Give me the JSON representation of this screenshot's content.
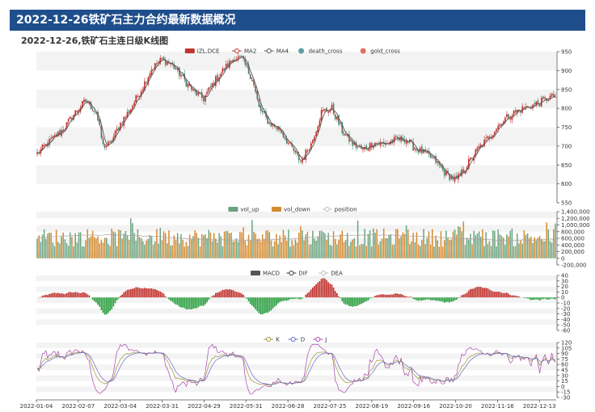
{
  "header": {
    "title": "2022-12-26铁矿石主力合约最新数据概况"
  },
  "chart_data": {
    "type": "candlestick",
    "title": "2022-12-26,铁矿石主连日级K线图",
    "x_ticks": [
      "2022-01-04",
      "2022-02-07",
      "2022-03-04",
      "2022-03-31",
      "2022-04-29",
      "2022-05-31",
      "2022-06-28",
      "2022-07-25",
      "2022-08-19",
      "2022-09-16",
      "2022-10-20",
      "2022-11-16",
      "2022-12-13"
    ],
    "colors": {
      "up": "#c23531",
      "down": "#3e8b75",
      "vol_up": "#6aa37f",
      "vol_down": "#d48a2e",
      "ma2": "#c23531",
      "ma4": "#555555",
      "death_cross": "#5f9ea0",
      "gold_cross": "#e07060",
      "dif": "#333333",
      "dea": "#bbbbbb",
      "k": "#999933",
      "d": "#6666cc",
      "j": "#aa44aa"
    },
    "panels": {
      "kline": {
        "legend": [
          "IZL.DCE",
          "MA2",
          "MA4",
          "death_cross",
          "gold_cross"
        ],
        "ylim": [
          550,
          950
        ],
        "yticks": [
          550,
          600,
          650,
          700,
          750,
          800,
          850,
          900,
          950
        ],
        "anchors": [
          [
            0,
            680
          ],
          [
            8,
            715
          ],
          [
            16,
            750
          ],
          [
            22,
            790
          ],
          [
            28,
            820
          ],
          [
            34,
            790
          ],
          [
            38,
            700
          ],
          [
            42,
            705
          ],
          [
            48,
            760
          ],
          [
            54,
            800
          ],
          [
            60,
            850
          ],
          [
            66,
            905
          ],
          [
            72,
            930
          ],
          [
            78,
            915
          ],
          [
            84,
            880
          ],
          [
            90,
            845
          ],
          [
            96,
            825
          ],
          [
            102,
            870
          ],
          [
            108,
            905
          ],
          [
            114,
            935
          ],
          [
            118,
            930
          ],
          [
            124,
            880
          ],
          [
            128,
            800
          ],
          [
            134,
            760
          ],
          [
            140,
            745
          ],
          [
            146,
            700
          ],
          [
            152,
            660
          ],
          [
            158,
            705
          ],
          [
            164,
            790
          ],
          [
            170,
            800
          ],
          [
            176,
            740
          ],
          [
            182,
            705
          ],
          [
            188,
            690
          ],
          [
            194,
            710
          ],
          [
            200,
            705
          ],
          [
            206,
            715
          ],
          [
            212,
            720
          ],
          [
            218,
            695
          ],
          [
            224,
            680
          ],
          [
            230,
            660
          ],
          [
            236,
            625
          ],
          [
            242,
            610
          ],
          [
            248,
            650
          ],
          [
            254,
            690
          ],
          [
            260,
            720
          ],
          [
            266,
            755
          ],
          [
            272,
            780
          ],
          [
            278,
            795
          ],
          [
            284,
            805
          ],
          [
            290,
            815
          ],
          [
            296,
            830
          ]
        ]
      },
      "volume": {
        "legend": [
          "vol_up",
          "vol_down",
          "position"
        ],
        "ylim": [
          -200000,
          1400000
        ],
        "yticks": [
          -200000,
          0,
          200000,
          400000,
          600000,
          800000,
          1000000,
          1200000,
          1400000
        ],
        "ytick_labels": [
          "-200,000",
          "0",
          "200,000",
          "400,000",
          "600,000",
          "800,000",
          "1,000,000",
          "1,200,000",
          "1,400,000"
        ]
      },
      "macd": {
        "legend": [
          "MACD",
          "DIF",
          "DEA"
        ],
        "ylim": [
          -60,
          40
        ],
        "yticks": [
          -60,
          -50,
          -40,
          -30,
          -20,
          -10,
          0,
          10,
          20,
          30,
          40
        ]
      },
      "kdj": {
        "legend": [
          "K",
          "D",
          "J"
        ],
        "ylim": [
          -30,
          120
        ],
        "yticks": [
          -30,
          -15,
          0,
          15,
          30,
          45,
          60,
          75,
          90,
          105,
          120
        ]
      }
    }
  }
}
